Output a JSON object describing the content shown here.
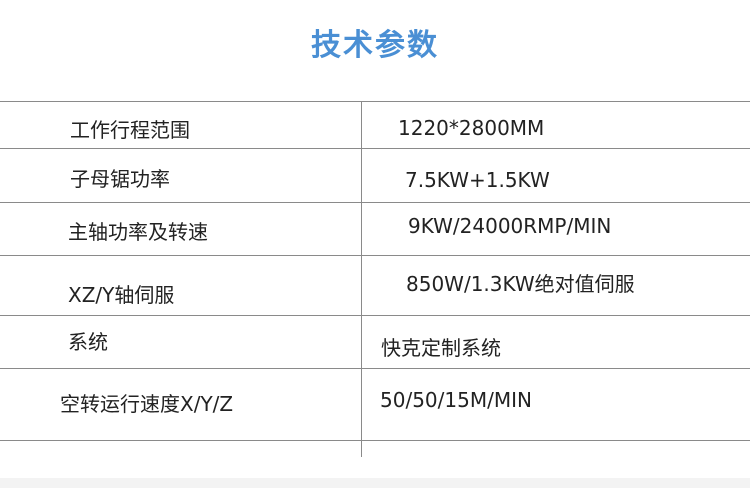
{
  "title": "技术参数",
  "rows": [
    {
      "label": "工作行程范围",
      "value": "1220*2800MM"
    },
    {
      "label": "子母锯功率",
      "value": "7.5KW+1.5KW"
    },
    {
      "label": "主轴功率及转速",
      "value": "9KW/24000RMP/MIN"
    },
    {
      "label": "XZ/Y轴伺服",
      "value": "850W/1.3KW绝对值伺服"
    },
    {
      "label": "系统",
      "value": "快克定制系统"
    },
    {
      "label": "空转运行速度X/Y/Z",
      "value": "50/50/15M/MIN"
    }
  ],
  "colors": {
    "title": "#4a8fd4",
    "rule": "#8a8a8a"
  }
}
